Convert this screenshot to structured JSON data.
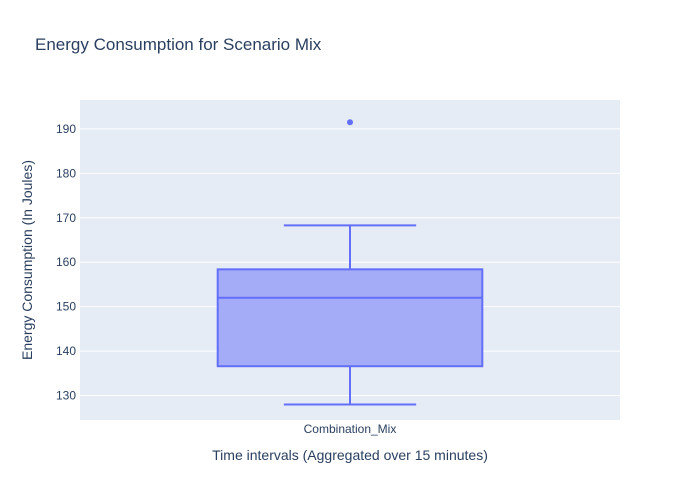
{
  "chart_data": {
    "type": "box",
    "title": "Energy Consumption for Scenario Mix",
    "xlabel": "Time intervals (Aggregated over 15 minutes)",
    "ylabel": "Energy Consumption (In Joules)",
    "categories": [
      "Combination_Mix"
    ],
    "boxes": [
      {
        "category": "Combination_Mix",
        "min": 128,
        "q1": 136.6,
        "median": 152,
        "q3": 158.4,
        "max": 168.3,
        "outliers": [
          191.5
        ]
      }
    ],
    "ylim": [
      124.5,
      196.5
    ],
    "yticks": [
      130,
      140,
      150,
      160,
      170,
      180,
      190
    ],
    "grid": true,
    "legend": "none",
    "colors": {
      "box_line": "#636efa",
      "box_fill": "#a4abf7",
      "plot_bg": "#e5ecf6",
      "grid": "#ffffff",
      "text": "#2a3f5f"
    }
  }
}
